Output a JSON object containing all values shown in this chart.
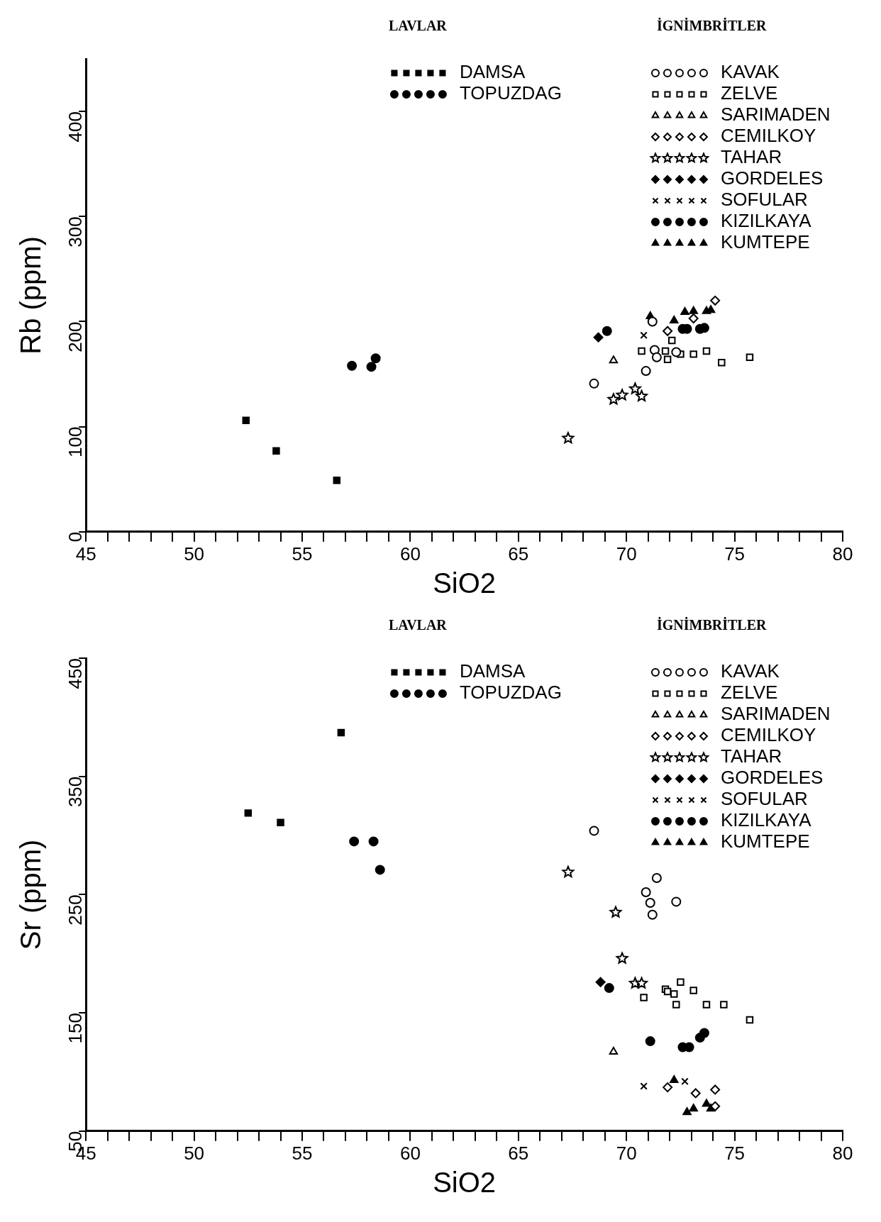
{
  "chart_data": [
    {
      "type": "scatter",
      "xlabel": "SiO2",
      "ylabel": "Rb (ppm)",
      "annotations": [
        "LAVLAR",
        "İGNİMBRİTLER"
      ],
      "legend": "top",
      "grid": false,
      "xlim": [
        45,
        80
      ],
      "xticks": [
        45,
        {
          "value": 46,
          "label": null
        },
        {
          "value": 47,
          "label": null
        },
        {
          "value": 48,
          "label": null
        },
        {
          "value": 49,
          "label": null
        },
        50,
        {
          "value": 51,
          "label": null
        },
        {
          "value": 52,
          "label": null
        },
        {
          "value": 53,
          "label": null
        },
        {
          "value": 54,
          "label": null
        },
        55,
        {
          "value": 56,
          "label": null
        },
        {
          "value": 57,
          "label": null
        },
        {
          "value": 58,
          "label": null
        },
        {
          "value": 59,
          "label": null
        },
        60,
        {
          "value": 61,
          "label": null
        },
        {
          "value": 62,
          "label": null
        },
        {
          "value": 63,
          "label": null
        },
        {
          "value": 64,
          "label": null
        },
        65,
        {
          "value": 66,
          "label": null
        },
        {
          "value": 67,
          "label": null
        },
        {
          "value": 68,
          "label": null
        },
        {
          "value": 69,
          "label": null
        },
        70,
        {
          "value": 71,
          "label": null
        },
        {
          "value": 72,
          "label": null
        },
        {
          "value": 73,
          "label": null
        },
        {
          "value": 74,
          "label": null
        },
        75,
        {
          "value": 76,
          "label": null
        },
        {
          "value": 77,
          "label": null
        },
        {
          "value": 78,
          "label": null
        },
        {
          "value": 79,
          "label": null
        },
        80
      ],
      "ylim": [
        0,
        450
      ],
      "yticks": [
        0,
        100,
        200,
        300,
        400
      ],
      "series": [
        {
          "name": "DAMSA",
          "color": "#000000",
          "marker": "square",
          "x": [
            52.4,
            53.8,
            56.6
          ],
          "values": [
            106,
            77,
            49
          ]
        },
        {
          "name": "TOPUZDAG",
          "color": "#000000",
          "marker": "circle",
          "x": [
            57.3,
            58.2,
            58.4
          ],
          "values": [
            158,
            157,
            165
          ]
        },
        {
          "name": "KAVAK",
          "color": "#000000",
          "marker": "circle",
          "x": [
            68.5,
            70.9,
            71.3,
            71.4,
            72.3,
            71.2
          ],
          "values": [
            141,
            153,
            173,
            166,
            171,
            200
          ]
        },
        {
          "name": "ZELVE",
          "color": "#000000",
          "marker": "square",
          "x": [
            70.7,
            71.8,
            71.9,
            72.1,
            72.5,
            73.1,
            73.7,
            74.4,
            75.7
          ],
          "values": [
            172,
            172,
            164,
            182,
            169,
            169,
            172,
            161,
            166
          ]
        },
        {
          "name": "SARIMADEN",
          "color": "#000000",
          "marker": "triangle",
          "x": [
            69.4
          ],
          "values": [
            163
          ]
        },
        {
          "name": "CEMILKOY",
          "color": "#000000",
          "marker": "diamond",
          "x": [
            71.9,
            73.1,
            74.1
          ],
          "values": [
            191,
            203,
            220
          ]
        },
        {
          "name": "TAHAR",
          "color": "#000000",
          "marker": "star",
          "x": [
            67.3,
            69.4,
            69.8,
            70.4,
            70.7
          ],
          "values": [
            89,
            126,
            130,
            136,
            129
          ]
        },
        {
          "name": "GORDELES",
          "color": "#000000",
          "marker": "diamond",
          "x": [
            68.7
          ],
          "values": [
            185
          ]
        },
        {
          "name": "SOFULAR",
          "color": "#000000",
          "marker": "cross",
          "x": [
            70.8
          ],
          "values": [
            187
          ]
        },
        {
          "name": "KIZILKAYA",
          "color": "#000000",
          "marker": "circle",
          "x": [
            69.1,
            72.6,
            72.8,
            73.4,
            73.6
          ],
          "values": [
            191,
            193,
            193,
            193,
            194
          ]
        },
        {
          "name": "KUMTEPE",
          "color": "#000000",
          "marker": "triangle",
          "x": [
            71.1,
            72.2,
            72.7,
            73.1,
            73.7,
            73.9
          ],
          "values": [
            205,
            201,
            209,
            210,
            210,
            211
          ]
        }
      ]
    },
    {
      "type": "scatter",
      "xlabel": "SiO2",
      "ylabel": "Sr (ppm)",
      "annotations": [
        "LAVLAR",
        "İGNİMBRİTLER"
      ],
      "legend": "top",
      "grid": false,
      "xlim": [
        45,
        80
      ],
      "xticks": [
        45,
        {
          "value": 46,
          "label": null
        },
        {
          "value": 47,
          "label": null
        },
        {
          "value": 48,
          "label": null
        },
        {
          "value": 49,
          "label": null
        },
        50,
        {
          "value": 51,
          "label": null
        },
        {
          "value": 52,
          "label": null
        },
        {
          "value": 53,
          "label": null
        },
        {
          "value": 54,
          "label": null
        },
        55,
        {
          "value": 56,
          "label": null
        },
        {
          "value": 57,
          "label": null
        },
        {
          "value": 58,
          "label": null
        },
        {
          "value": 59,
          "label": null
        },
        60,
        {
          "value": 61,
          "label": null
        },
        {
          "value": 62,
          "label": null
        },
        {
          "value": 63,
          "label": null
        },
        {
          "value": 64,
          "label": null
        },
        65,
        {
          "value": 66,
          "label": null
        },
        {
          "value": 67,
          "label": null
        },
        {
          "value": 68,
          "label": null
        },
        {
          "value": 69,
          "label": null
        },
        70,
        {
          "value": 71,
          "label": null
        },
        {
          "value": 72,
          "label": null
        },
        {
          "value": 73,
          "label": null
        },
        {
          "value": 74,
          "label": null
        },
        75,
        {
          "value": 76,
          "label": null
        },
        {
          "value": 77,
          "label": null
        },
        {
          "value": 78,
          "label": null
        },
        {
          "value": 79,
          "label": null
        },
        80
      ],
      "ylim": [
        50,
        450
      ],
      "yticks": [
        50,
        150,
        250,
        350,
        450
      ],
      "series": [
        {
          "name": "DAMSA",
          "color": "#000000",
          "marker": "square",
          "x": [
            52.5,
            54.0,
            56.8
          ],
          "values": [
            319,
            311,
            387
          ]
        },
        {
          "name": "TOPUZDAG",
          "color": "#000000",
          "marker": "circle",
          "x": [
            57.4,
            58.3,
            58.6
          ],
          "values": [
            295,
            295,
            271
          ]
        },
        {
          "name": "KAVAK",
          "color": "#000000",
          "marker": "circle",
          "x": [
            68.5,
            71.4,
            70.9,
            71.1,
            71.2,
            72.3
          ],
          "values": [
            304,
            264,
            252,
            243,
            233,
            244
          ]
        },
        {
          "name": "ZELVE",
          "color": "#000000",
          "marker": "square",
          "x": [
            70.8,
            71.8,
            71.9,
            72.2,
            72.3,
            72.5,
            73.1,
            73.7,
            74.5,
            75.7
          ],
          "values": [
            163,
            170,
            168,
            166,
            157,
            176,
            169,
            157,
            157,
            144
          ]
        },
        {
          "name": "SARIMADEN",
          "color": "#000000",
          "marker": "triangle",
          "x": [
            69.4
          ],
          "values": [
            117
          ]
        },
        {
          "name": "CEMILKOY",
          "color": "#000000",
          "marker": "diamond",
          "x": [
            71.9,
            73.2,
            74.1,
            74.1
          ],
          "values": [
            87,
            82,
            85,
            71
          ]
        },
        {
          "name": "TAHAR",
          "color": "#000000",
          "marker": "star",
          "x": [
            67.3,
            69.5,
            69.8,
            70.4,
            70.7
          ],
          "values": [
            269,
            235,
            196,
            175,
            175
          ]
        },
        {
          "name": "GORDELES",
          "color": "#000000",
          "marker": "diamond",
          "x": [
            68.8
          ],
          "values": [
            176
          ]
        },
        {
          "name": "SOFULAR",
          "color": "#000000",
          "marker": "cross",
          "x": [
            70.8,
            72.7
          ],
          "values": [
            88,
            92
          ]
        },
        {
          "name": "KIZILKAYA",
          "color": "#000000",
          "marker": "circle",
          "x": [
            69.2,
            71.1,
            72.6,
            72.9,
            73.4,
            73.6
          ],
          "values": [
            171,
            126,
            121,
            121,
            129,
            133
          ]
        },
        {
          "name": "KUMTEPE",
          "color": "#000000",
          "marker": "triangle",
          "x": [
            72.2,
            72.8,
            73.1,
            73.7,
            73.9
          ],
          "values": [
            93,
            66,
            69,
            73,
            69
          ]
        }
      ]
    }
  ]
}
